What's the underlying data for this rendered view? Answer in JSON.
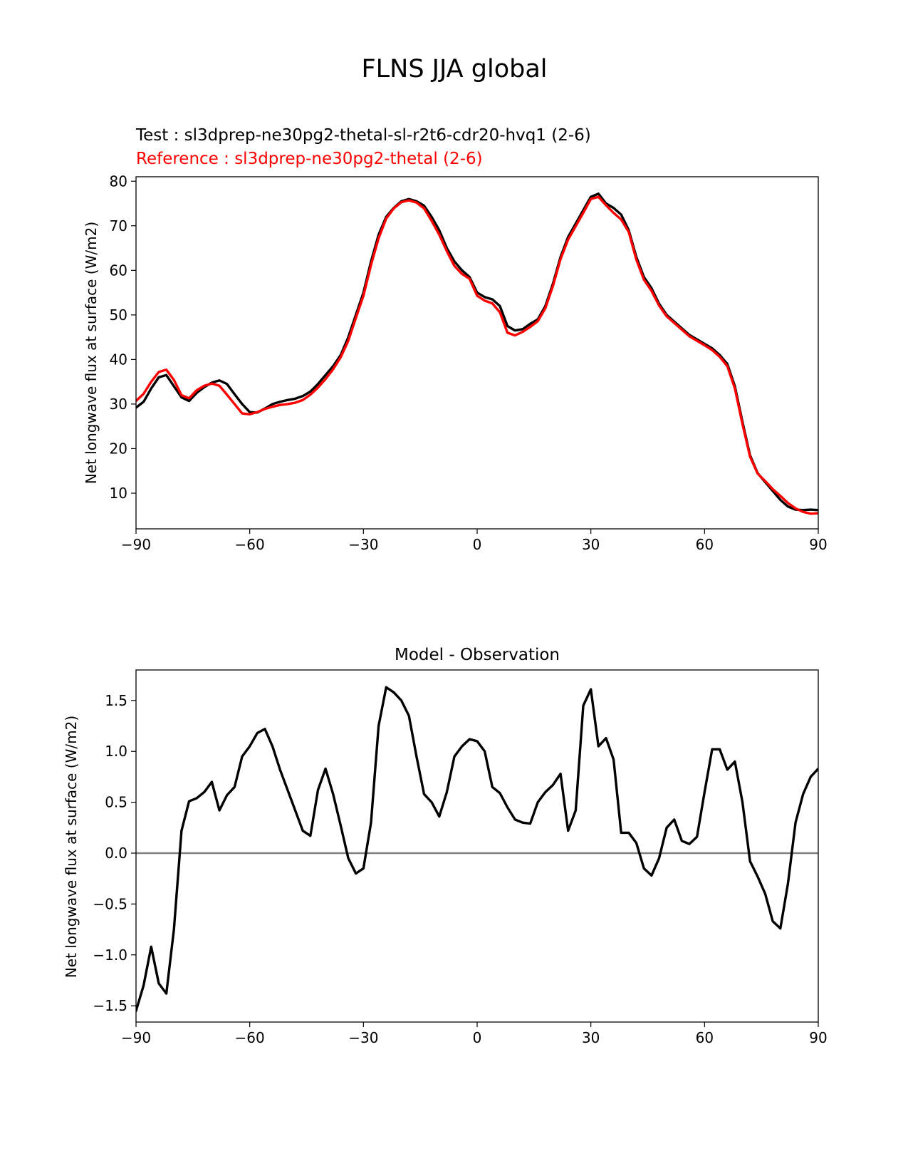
{
  "figure_title": "FLNS JJA global",
  "colors": {
    "test": "#000000",
    "reference": "#ff0000",
    "zero_line": "#808080"
  },
  "chart_data": [
    {
      "type": "line",
      "subtitle_test": "Test : sl3dprep-ne30pg2-thetal-sl-r2t6-cdr20-hvq1 (2-6)",
      "subtitle_reference": "Reference : sl3dprep-ne30pg2-thetal (2-6)",
      "xlabel": "",
      "ylabel": "Net longwave flux at surface (W/m2)",
      "xlim": [
        -90,
        90
      ],
      "ylim": [
        2,
        81
      ],
      "xticks": [
        -90,
        -60,
        -30,
        0,
        30,
        60,
        90
      ],
      "xtick_labels": [
        "−90",
        "−60",
        "−30",
        "0",
        "30",
        "60",
        "90"
      ],
      "yticks": [
        10,
        20,
        30,
        40,
        50,
        60,
        70,
        80
      ],
      "ytick_labels": [
        "10",
        "20",
        "30",
        "40",
        "50",
        "60",
        "70",
        "80"
      ],
      "x": [
        -90,
        -88,
        -86,
        -84,
        -82,
        -80,
        -78,
        -76,
        -74,
        -72,
        -70,
        -68,
        -66,
        -64,
        -62,
        -60,
        -58,
        -56,
        -54,
        -52,
        -50,
        -48,
        -46,
        -44,
        -42,
        -40,
        -38,
        -36,
        -34,
        -32,
        -30,
        -28,
        -26,
        -24,
        -22,
        -20,
        -18,
        -16,
        -14,
        -12,
        -10,
        -8,
        -6,
        -4,
        -2,
        0,
        2,
        4,
        6,
        8,
        10,
        12,
        14,
        16,
        18,
        20,
        22,
        24,
        26,
        28,
        30,
        32,
        34,
        36,
        38,
        40,
        42,
        44,
        46,
        48,
        50,
        52,
        54,
        56,
        58,
        60,
        62,
        64,
        66,
        68,
        70,
        72,
        74,
        76,
        78,
        80,
        82,
        84,
        86,
        88,
        90
      ],
      "series": [
        {
          "name": "Test",
          "values": [
            29.2,
            30.5,
            33.5,
            36,
            36.5,
            34,
            31.5,
            30.7,
            32.5,
            33.8,
            34.8,
            35.3,
            34.5,
            32.2,
            30,
            28.2,
            28.1,
            29,
            30,
            30.5,
            30.9,
            31.2,
            31.8,
            32.8,
            34.5,
            36.5,
            38.5,
            41,
            45,
            50,
            55,
            62,
            68,
            72,
            74,
            75.5,
            76,
            75.5,
            74.5,
            72,
            69,
            65,
            62,
            60,
            58.5,
            55,
            54,
            53.5,
            52,
            47.5,
            46.5,
            46.8,
            48,
            49,
            52,
            57,
            63,
            67.5,
            70.5,
            73.5,
            76.5,
            77.2,
            75,
            74,
            72.5,
            69,
            63,
            58.5,
            56,
            52.5,
            50,
            48.5,
            47,
            45.5,
            44.5,
            43.5,
            42.5,
            41,
            39,
            34,
            26,
            18.5,
            14.5,
            12.5,
            10.5,
            8.5,
            7,
            6.3,
            6.2,
            6.3,
            6.2
          ]
        },
        {
          "name": "Reference",
          "values": [
            30.7,
            32.3,
            35,
            37.2,
            37.7,
            35.4,
            32,
            31.3,
            33.1,
            34.1,
            34.6,
            34.1,
            32.1,
            30,
            27.9,
            27.7,
            28.2,
            28.9,
            29.4,
            29.8,
            30,
            30.3,
            30.9,
            32.1,
            33.7,
            35.6,
            37.8,
            40.5,
            44.2,
            49.3,
            54.3,
            61.2,
            67.2,
            71.6,
            73.9,
            75.3,
            75.7,
            75.2,
            73.9,
            71.1,
            68,
            64.3,
            61,
            59.2,
            58.1,
            54.3,
            53.2,
            52.6,
            50.6,
            46,
            45.4,
            46.2,
            47.3,
            48.6,
            51.5,
            56.5,
            62.5,
            66.9,
            69.9,
            72.9,
            76,
            76.5,
            74.6,
            72.9,
            71.4,
            68.6,
            62.4,
            57.9,
            55.4,
            52.1,
            49.7,
            48.2,
            46.7,
            45.2,
            44.2,
            43.2,
            42.1,
            40.6,
            38.5,
            33.5,
            25.5,
            18.2,
            14.4,
            12.7,
            10.9,
            9.4,
            7.8,
            6.6,
            5.8,
            5.4,
            5.5
          ]
        }
      ]
    },
    {
      "type": "line",
      "title": "Model - Observation",
      "xlabel": "",
      "ylabel": "Net longwave flux at surface (W/m2)",
      "xlim": [
        -90,
        90
      ],
      "ylim": [
        -1.66,
        1.8
      ],
      "xticks": [
        -90,
        -60,
        -30,
        0,
        30,
        60,
        90
      ],
      "xtick_labels": [
        "−90",
        "−60",
        "−30",
        "0",
        "30",
        "60",
        "90"
      ],
      "yticks": [
        -1.5,
        -1.0,
        -0.5,
        0.0,
        0.5,
        1.0,
        1.5
      ],
      "ytick_labels": [
        "−1.5",
        "−1.0",
        "−0.5",
        "0.0",
        "0.5",
        "1.0",
        "1.5"
      ],
      "zero_line": 0,
      "x": [
        -90,
        -88,
        -86,
        -84,
        -82,
        -80,
        -78,
        -76,
        -74,
        -72,
        -70,
        -68,
        -66,
        -64,
        -62,
        -60,
        -58,
        -56,
        -54,
        -52,
        -50,
        -48,
        -46,
        -44,
        -42,
        -40,
        -38,
        -36,
        -34,
        -32,
        -30,
        -28,
        -26,
        -24,
        -22,
        -20,
        -18,
        -16,
        -14,
        -12,
        -10,
        -8,
        -6,
        -4,
        -2,
        0,
        2,
        4,
        6,
        8,
        10,
        12,
        14,
        16,
        18,
        20,
        22,
        24,
        26,
        28,
        30,
        32,
        34,
        36,
        38,
        40,
        42,
        44,
        46,
        48,
        50,
        52,
        54,
        56,
        58,
        60,
        62,
        64,
        66,
        68,
        70,
        72,
        74,
        76,
        78,
        80,
        82,
        84,
        86,
        88,
        90
      ],
      "series": [
        {
          "name": "Model - Observation",
          "values": [
            -1.55,
            -1.3,
            -0.92,
            -1.28,
            -1.38,
            -0.75,
            0.22,
            0.51,
            0.54,
            0.6,
            0.7,
            0.42,
            0.57,
            0.65,
            0.95,
            1.05,
            1.18,
            1.22,
            1.05,
            0.82,
            0.62,
            0.42,
            0.22,
            0.17,
            0.62,
            0.83,
            0.58,
            0.27,
            -0.05,
            -0.2,
            -0.15,
            0.3,
            1.25,
            1.63,
            1.58,
            1.5,
            1.35,
            0.95,
            0.58,
            0.5,
            0.36,
            0.6,
            0.95,
            1.05,
            1.12,
            1.1,
            1.0,
            0.65,
            0.59,
            0.45,
            0.33,
            0.3,
            0.29,
            0.5,
            0.6,
            0.67,
            0.78,
            0.22,
            0.42,
            1.45,
            1.61,
            1.05,
            1.13,
            0.92,
            0.2,
            0.2,
            0.1,
            -0.15,
            -0.22,
            -0.05,
            0.25,
            0.33,
            0.12,
            0.09,
            0.16,
            0.6,
            1.02,
            1.02,
            0.82,
            0.9,
            0.5,
            -0.08,
            -0.23,
            -0.4,
            -0.67,
            -0.74,
            -0.3,
            0.3,
            0.58,
            0.75,
            0.83
          ]
        }
      ]
    }
  ]
}
